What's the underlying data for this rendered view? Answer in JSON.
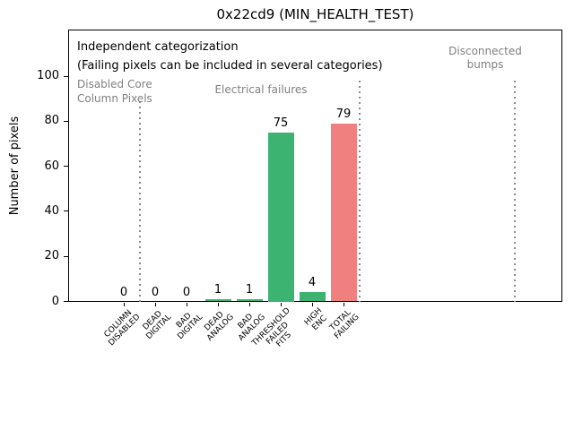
{
  "title": "0x22cd9 (MIN_HEALTH_TEST)",
  "notes": {
    "line1": "Independent categorization",
    "line2": "(Failing pixels can be included in several categories)"
  },
  "regions": {
    "disabled_core": "Disabled Core\nColumn Pixels",
    "electrical": "Electrical failures",
    "disconnected": "Disconnected\nbumps"
  },
  "colors": {
    "category_bar_green": "#3cb371",
    "total_bar_red": "#f08080",
    "region_text_gray": "#808080",
    "separator_gray": "#8a8a8a"
  },
  "chart_data": {
    "type": "bar",
    "title": "0x22cd9 (MIN_HEALTH_TEST)",
    "xlabel": "",
    "ylabel": "Number of pixels",
    "categories": [
      "COLUMN\nDISABLED",
      "DEAD\nDIGITAL",
      "BAD\nDIGITAL",
      "DEAD\nANALOG",
      "BAD\nANALOG",
      "THRESHOLD\nFAILED\nFITS",
      "HIGH\nENC",
      "TOTAL\nFAILING"
    ],
    "values": [
      0,
      0,
      0,
      1,
      1,
      75,
      4,
      79
    ],
    "bar_value_labels": [
      "0",
      "0",
      "0",
      "1",
      "1",
      "75",
      "4",
      "79"
    ],
    "bar_colors": [
      "#3cb371",
      "#3cb371",
      "#3cb371",
      "#3cb371",
      "#3cb371",
      "#3cb371",
      "#3cb371",
      "#f08080"
    ],
    "yticks": [
      0,
      20,
      40,
      60,
      80,
      100
    ],
    "ylim": [
      0,
      120
    ],
    "grid": false,
    "legend": null,
    "annotations": [
      {
        "text": "Independent categorization",
        "color": "#000000",
        "position": "top-left-inside"
      },
      {
        "text": "(Failing pixels can be included in several categories)",
        "color": "#000000",
        "position": "top-left-inside"
      },
      {
        "text": "Disabled Core\nColumn Pixels",
        "color": "#808080",
        "position": "over-first-category-region"
      },
      {
        "text": "Electrical failures",
        "color": "#808080",
        "position": "over-middle-categories-region"
      },
      {
        "text": "Disconnected\nbumps",
        "color": "#808080",
        "position": "over-right-empty-region"
      }
    ],
    "separator_lines_at_category_x": [
      0.5,
      7.5,
      12.45
    ]
  }
}
